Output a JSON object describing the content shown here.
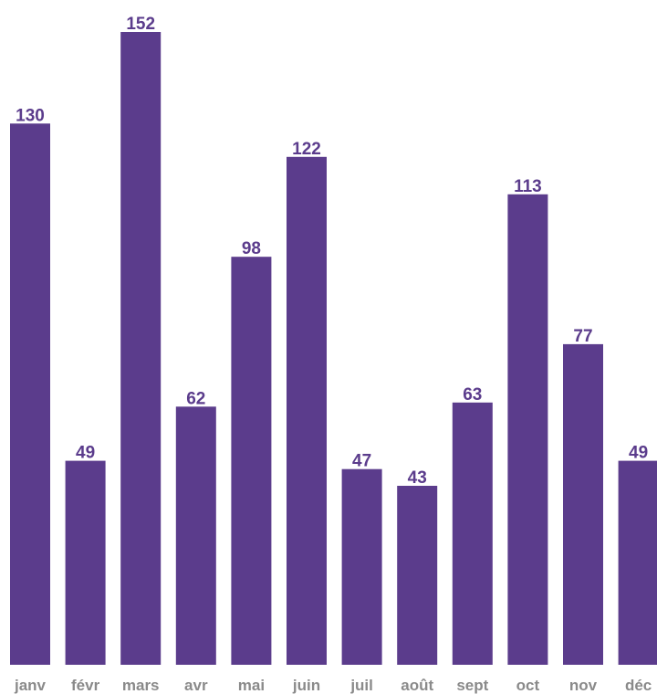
{
  "chart_data": {
    "type": "bar",
    "title": "",
    "xlabel": "",
    "ylabel": "",
    "categories": [
      "janv",
      "févr",
      "mars",
      "avr",
      "mai",
      "juin",
      "juil",
      "août",
      "sept",
      "oct",
      "nov",
      "déc"
    ],
    "values": [
      130,
      49,
      152,
      62,
      98,
      122,
      47,
      43,
      63,
      113,
      77,
      49
    ],
    "ylim": [
      0,
      152
    ],
    "grid": false,
    "legend": "none",
    "data_labels": true,
    "colors": {
      "bar": "#5b3c8c",
      "value_label": "#5b3c8c",
      "tick_label": "#8a8a8a"
    }
  }
}
